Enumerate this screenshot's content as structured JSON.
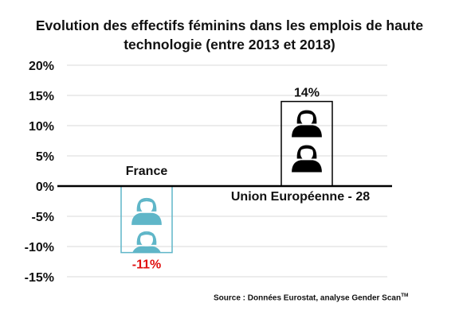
{
  "title": {
    "line1": "Evolution des effectifs féminins dans les emplois de haute",
    "line2": "technologie (entre 2013 et 2018)"
  },
  "source": {
    "text": "Source : Données Eurostat, analyse Gender Scan",
    "mark": "TM"
  },
  "chart_data": {
    "type": "bar",
    "title": "Evolution des effectifs féminins dans les emplois de haute technologie (entre 2013 et 2018)",
    "categories": [
      "France",
      "Union Européenne - 28"
    ],
    "values": [
      -11,
      14
    ],
    "data_labels": [
      "-11%",
      "14%"
    ],
    "ylim": [
      -15,
      20
    ],
    "yticks": [
      20,
      15,
      10,
      5,
      0,
      -5,
      -10,
      -15
    ],
    "ytick_labels": [
      "20%",
      "15%",
      "10%",
      "5%",
      "0%",
      "-5%",
      "-10%",
      "-15%"
    ],
    "xlabel": "",
    "ylabel": "",
    "grid": true,
    "bar_style": "pictogram of women figures",
    "colors": {
      "France": "#5fb6c8",
      "Union Européenne - 28": "#000000",
      "negative_label": "#e01010",
      "gridline": "#d9d9d9"
    }
  }
}
